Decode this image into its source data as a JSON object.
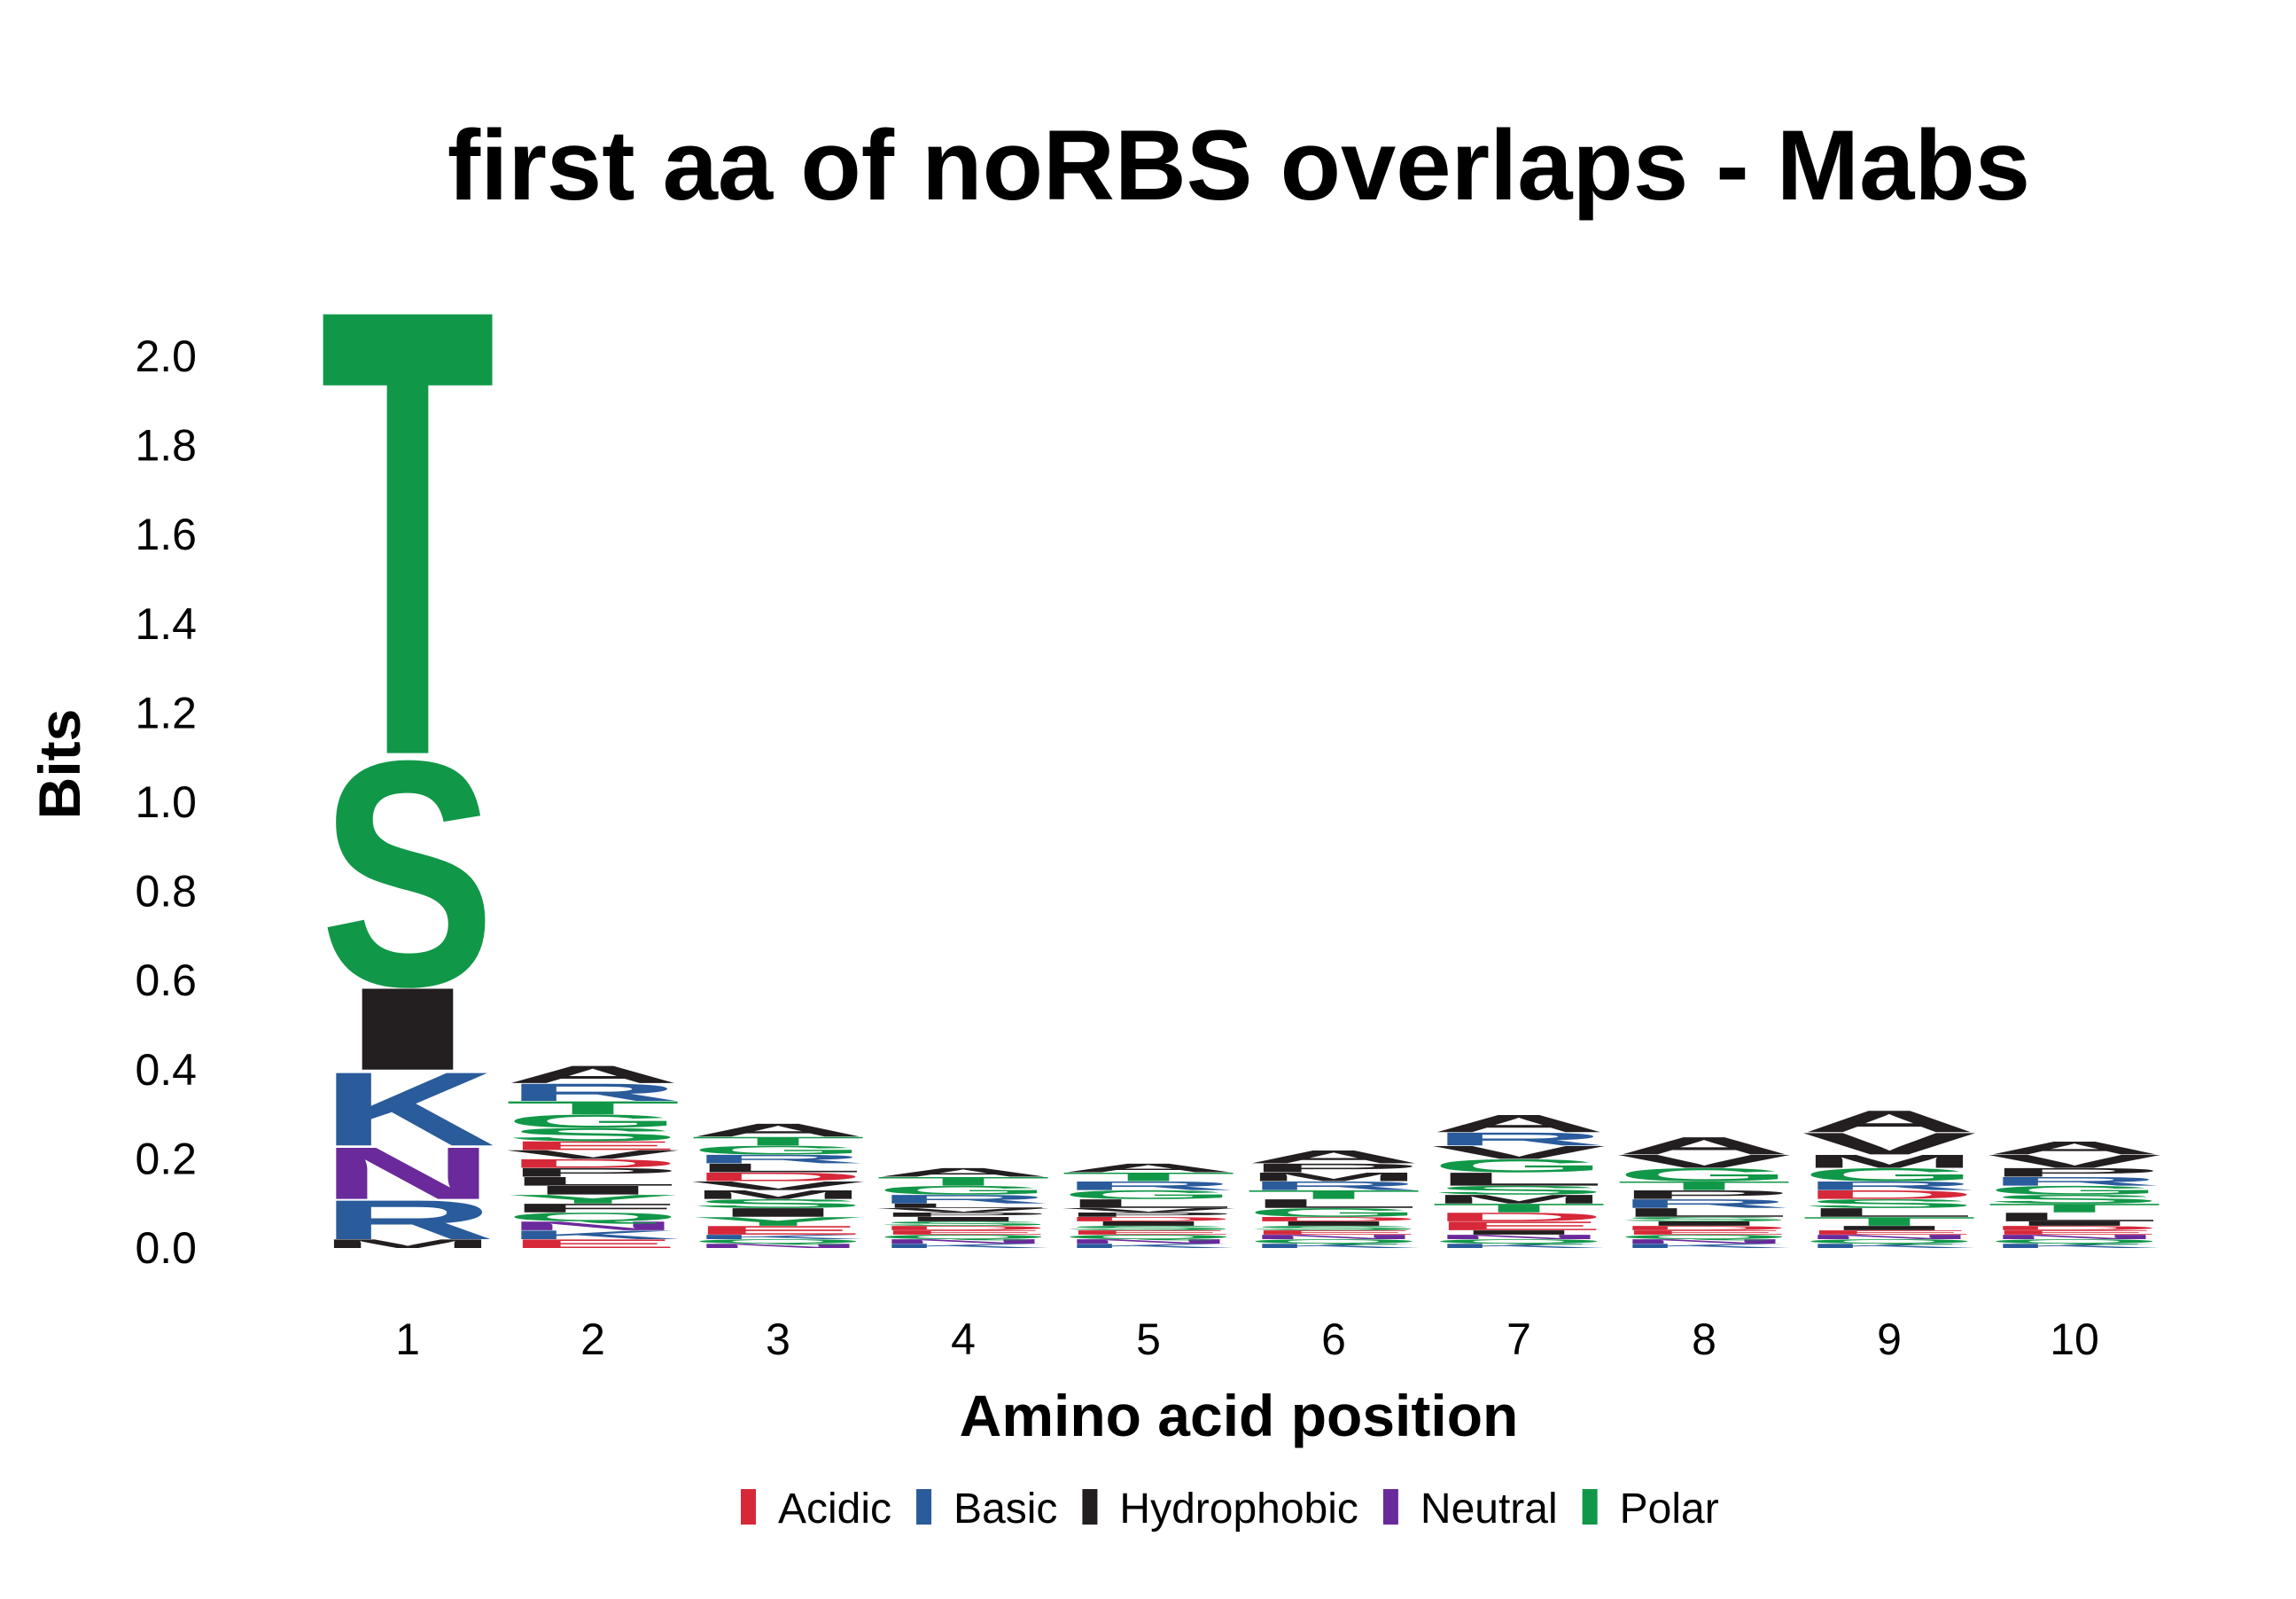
{
  "chart_data": {
    "type": "sequence-logo",
    "title": "first aa of noRBS overlaps - Mabs",
    "xlabel": "Amino acid position",
    "ylabel": "Bits",
    "ylim": [
      0,
      2.2
    ],
    "yticks": [
      "0.0",
      "0.2",
      "0.4",
      "0.6",
      "0.8",
      "1.0",
      "1.2",
      "1.4",
      "1.6",
      "1.8",
      "2.0"
    ],
    "xticks": [
      "1",
      "2",
      "3",
      "4",
      "5",
      "6",
      "7",
      "8",
      "9",
      "10"
    ],
    "legend": {
      "placement": "bottom",
      "items": [
        {
          "label": "Acidic",
          "color": "#d62839"
        },
        {
          "label": "Basic",
          "color": "#2a5b9b"
        },
        {
          "label": "Hydrophobic",
          "color": "#231f20"
        },
        {
          "label": "Neutral",
          "color": "#6a2a9b"
        },
        {
          "label": "Polar",
          "color": "#119748"
        }
      ]
    },
    "positions": [
      {
        "position": "1",
        "stack": [
          {
            "letter": "M",
            "group": "Hydrophobic",
            "bits": 0.02
          },
          {
            "letter": "R",
            "group": "Basic",
            "bits": 0.09
          },
          {
            "letter": "N",
            "group": "Neutral",
            "bits": 0.12
          },
          {
            "letter": "K",
            "group": "Basic",
            "bits": 0.17
          },
          {
            "letter": "I",
            "group": "Hydrophobic",
            "bits": 0.19
          },
          {
            "letter": "S",
            "group": "Polar",
            "bits": 0.52
          },
          {
            "letter": "T",
            "group": "Polar",
            "bits": 1.03
          }
        ]
      },
      {
        "position": "2",
        "stack": [
          {
            "letter": "E",
            "group": "Acidic",
            "bits": 0.02
          },
          {
            "letter": "K",
            "group": "Basic",
            "bits": 0.02
          },
          {
            "letter": "N",
            "group": "Neutral",
            "bits": 0.02
          },
          {
            "letter": "Q",
            "group": "Polar",
            "bits": 0.02
          },
          {
            "letter": "F",
            "group": "Hydrophobic",
            "bits": 0.02
          },
          {
            "letter": "Y",
            "group": "Polar",
            "bits": 0.02
          },
          {
            "letter": "I",
            "group": "Hydrophobic",
            "bits": 0.02
          },
          {
            "letter": "L",
            "group": "Hydrophobic",
            "bits": 0.02
          },
          {
            "letter": "P",
            "group": "Hydrophobic",
            "bits": 0.02
          },
          {
            "letter": "D",
            "group": "Acidic",
            "bits": 0.02
          },
          {
            "letter": "V",
            "group": "Hydrophobic",
            "bits": 0.02
          },
          {
            "letter": "E",
            "group": "Acidic",
            "bits": 0.02
          },
          {
            "letter": "S",
            "group": "Polar",
            "bits": 0.03
          },
          {
            "letter": "G",
            "group": "Polar",
            "bits": 0.03
          },
          {
            "letter": "T",
            "group": "Polar",
            "bits": 0.03
          },
          {
            "letter": "R",
            "group": "Basic",
            "bits": 0.04
          },
          {
            "letter": "A",
            "group": "Hydrophobic",
            "bits": 0.04
          }
        ]
      },
      {
        "position": "3",
        "stack": [
          {
            "letter": "N",
            "group": "Neutral",
            "bits": 0.01
          },
          {
            "letter": "Q",
            "group": "Polar",
            "bits": 0.01
          },
          {
            "letter": "K",
            "group": "Basic",
            "bits": 0.01
          },
          {
            "letter": "E",
            "group": "Acidic",
            "bits": 0.02
          },
          {
            "letter": "Y",
            "group": "Polar",
            "bits": 0.02
          },
          {
            "letter": "I",
            "group": "Hydrophobic",
            "bits": 0.02
          },
          {
            "letter": "S",
            "group": "Polar",
            "bits": 0.02
          },
          {
            "letter": "M",
            "group": "Hydrophobic",
            "bits": 0.02
          },
          {
            "letter": "V",
            "group": "Hydrophobic",
            "bits": 0.02
          },
          {
            "letter": "D",
            "group": "Acidic",
            "bits": 0.02
          },
          {
            "letter": "L",
            "group": "Hydrophobic",
            "bits": 0.02
          },
          {
            "letter": "R",
            "group": "Basic",
            "bits": 0.02
          },
          {
            "letter": "G",
            "group": "Polar",
            "bits": 0.02
          },
          {
            "letter": "T",
            "group": "Polar",
            "bits": 0.02
          },
          {
            "letter": "A",
            "group": "Hydrophobic",
            "bits": 0.03
          }
        ]
      },
      {
        "position": "4",
        "stack": [
          {
            "letter": "K",
            "group": "Basic",
            "bits": 0.01
          },
          {
            "letter": "N",
            "group": "Neutral",
            "bits": 0.01
          },
          {
            "letter": "Q",
            "group": "Polar",
            "bits": 0.01
          },
          {
            "letter": "E",
            "group": "Acidic",
            "bits": 0.01
          },
          {
            "letter": "D",
            "group": "Acidic",
            "bits": 0.01
          },
          {
            "letter": "S",
            "group": "Polar",
            "bits": 0.01
          },
          {
            "letter": "I",
            "group": "Hydrophobic",
            "bits": 0.01
          },
          {
            "letter": "P",
            "group": "Hydrophobic",
            "bits": 0.01
          },
          {
            "letter": "V",
            "group": "Hydrophobic",
            "bits": 0.01
          },
          {
            "letter": "L",
            "group": "Hydrophobic",
            "bits": 0.01
          },
          {
            "letter": "R",
            "group": "Basic",
            "bits": 0.02
          },
          {
            "letter": "G",
            "group": "Polar",
            "bits": 0.02
          },
          {
            "letter": "T",
            "group": "Polar",
            "bits": 0.02
          },
          {
            "letter": "A",
            "group": "Hydrophobic",
            "bits": 0.02
          }
        ]
      },
      {
        "position": "5",
        "stack": [
          {
            "letter": "K",
            "group": "Basic",
            "bits": 0.01
          },
          {
            "letter": "N",
            "group": "Neutral",
            "bits": 0.01
          },
          {
            "letter": "Q",
            "group": "Polar",
            "bits": 0.01
          },
          {
            "letter": "E",
            "group": "Acidic",
            "bits": 0.01
          },
          {
            "letter": "S",
            "group": "Polar",
            "bits": 0.01
          },
          {
            "letter": "I",
            "group": "Hydrophobic",
            "bits": 0.01
          },
          {
            "letter": "D",
            "group": "Acidic",
            "bits": 0.01
          },
          {
            "letter": "P",
            "group": "Hydrophobic",
            "bits": 0.01
          },
          {
            "letter": "V",
            "group": "Hydrophobic",
            "bits": 0.01
          },
          {
            "letter": "L",
            "group": "Hydrophobic",
            "bits": 0.02
          },
          {
            "letter": "G",
            "group": "Polar",
            "bits": 0.02
          },
          {
            "letter": "R",
            "group": "Basic",
            "bits": 0.02
          },
          {
            "letter": "T",
            "group": "Polar",
            "bits": 0.02
          },
          {
            "letter": "A",
            "group": "Hydrophobic",
            "bits": 0.02
          }
        ]
      },
      {
        "position": "6",
        "stack": [
          {
            "letter": "K",
            "group": "Basic",
            "bits": 0.01
          },
          {
            "letter": "Q",
            "group": "Polar",
            "bits": 0.01
          },
          {
            "letter": "N",
            "group": "Neutral",
            "bits": 0.01
          },
          {
            "letter": "E",
            "group": "Acidic",
            "bits": 0.01
          },
          {
            "letter": "S",
            "group": "Polar",
            "bits": 0.01
          },
          {
            "letter": "I",
            "group": "Hydrophobic",
            "bits": 0.01
          },
          {
            "letter": "D",
            "group": "Acidic",
            "bits": 0.01
          },
          {
            "letter": "G",
            "group": "Polar",
            "bits": 0.02
          },
          {
            "letter": "L",
            "group": "Hydrophobic",
            "bits": 0.02
          },
          {
            "letter": "T",
            "group": "Polar",
            "bits": 0.02
          },
          {
            "letter": "R",
            "group": "Basic",
            "bits": 0.02
          },
          {
            "letter": "M",
            "group": "Hydrophobic",
            "bits": 0.02
          },
          {
            "letter": "P",
            "group": "Hydrophobic",
            "bits": 0.02
          },
          {
            "letter": "A",
            "group": "Hydrophobic",
            "bits": 0.03
          }
        ]
      },
      {
        "position": "7",
        "stack": [
          {
            "letter": "K",
            "group": "Basic",
            "bits": 0.01
          },
          {
            "letter": "Q",
            "group": "Polar",
            "bits": 0.01
          },
          {
            "letter": "N",
            "group": "Neutral",
            "bits": 0.01
          },
          {
            "letter": "I",
            "group": "Hydrophobic",
            "bits": 0.01
          },
          {
            "letter": "E",
            "group": "Acidic",
            "bits": 0.02
          },
          {
            "letter": "D",
            "group": "Acidic",
            "bits": 0.02
          },
          {
            "letter": "T",
            "group": "Polar",
            "bits": 0.02
          },
          {
            "letter": "M",
            "group": "Hydrophobic",
            "bits": 0.02
          },
          {
            "letter": "S",
            "group": "Polar",
            "bits": 0.02
          },
          {
            "letter": "L",
            "group": "Hydrophobic",
            "bits": 0.03
          },
          {
            "letter": "G",
            "group": "Polar",
            "bits": 0.03
          },
          {
            "letter": "V",
            "group": "Hydrophobic",
            "bits": 0.03
          },
          {
            "letter": "R",
            "group": "Basic",
            "bits": 0.03
          },
          {
            "letter": "A",
            "group": "Hydrophobic",
            "bits": 0.04
          }
        ]
      },
      {
        "position": "8",
        "stack": [
          {
            "letter": "K",
            "group": "Basic",
            "bits": 0.01
          },
          {
            "letter": "N",
            "group": "Neutral",
            "bits": 0.01
          },
          {
            "letter": "Q",
            "group": "Polar",
            "bits": 0.01
          },
          {
            "letter": "E",
            "group": "Acidic",
            "bits": 0.01
          },
          {
            "letter": "D",
            "group": "Acidic",
            "bits": 0.01
          },
          {
            "letter": "I",
            "group": "Hydrophobic",
            "bits": 0.01
          },
          {
            "letter": "S",
            "group": "Polar",
            "bits": 0.01
          },
          {
            "letter": "L",
            "group": "Hydrophobic",
            "bits": 0.02
          },
          {
            "letter": "R",
            "group": "Basic",
            "bits": 0.02
          },
          {
            "letter": "P",
            "group": "Hydrophobic",
            "bits": 0.02
          },
          {
            "letter": "T",
            "group": "Polar",
            "bits": 0.02
          },
          {
            "letter": "G",
            "group": "Polar",
            "bits": 0.03
          },
          {
            "letter": "V",
            "group": "Hydrophobic",
            "bits": 0.03
          },
          {
            "letter": "A",
            "group": "Hydrophobic",
            "bits": 0.04
          }
        ]
      },
      {
        "position": "9",
        "stack": [
          {
            "letter": "K",
            "group": "Basic",
            "bits": 0.01
          },
          {
            "letter": "Q",
            "group": "Polar",
            "bits": 0.01
          },
          {
            "letter": "N",
            "group": "Neutral",
            "bits": 0.01
          },
          {
            "letter": "E",
            "group": "Acidic",
            "bits": 0.01
          },
          {
            "letter": "I",
            "group": "Hydrophobic",
            "bits": 0.01
          },
          {
            "letter": "T",
            "group": "Polar",
            "bits": 0.02
          },
          {
            "letter": "L",
            "group": "Hydrophobic",
            "bits": 0.02
          },
          {
            "letter": "S",
            "group": "Polar",
            "bits": 0.02
          },
          {
            "letter": "D",
            "group": "Acidic",
            "bits": 0.02
          },
          {
            "letter": "R",
            "group": "Basic",
            "bits": 0.02
          },
          {
            "letter": "G",
            "group": "Polar",
            "bits": 0.03
          },
          {
            "letter": "M",
            "group": "Hydrophobic",
            "bits": 0.03
          },
          {
            "letter": "V",
            "group": "Hydrophobic",
            "bits": 0.05
          },
          {
            "letter": "A",
            "group": "Hydrophobic",
            "bits": 0.05
          }
        ]
      },
      {
        "position": "10",
        "stack": [
          {
            "letter": "K",
            "group": "Basic",
            "bits": 0.01
          },
          {
            "letter": "Q",
            "group": "Polar",
            "bits": 0.01
          },
          {
            "letter": "N",
            "group": "Neutral",
            "bits": 0.01
          },
          {
            "letter": "E",
            "group": "Acidic",
            "bits": 0.01
          },
          {
            "letter": "D",
            "group": "Acidic",
            "bits": 0.01
          },
          {
            "letter": "I",
            "group": "Hydrophobic",
            "bits": 0.01
          },
          {
            "letter": "L",
            "group": "Hydrophobic",
            "bits": 0.02
          },
          {
            "letter": "T",
            "group": "Polar",
            "bits": 0.02
          },
          {
            "letter": "S",
            "group": "Polar",
            "bits": 0.02
          },
          {
            "letter": "G",
            "group": "Polar",
            "bits": 0.02
          },
          {
            "letter": "R",
            "group": "Basic",
            "bits": 0.02
          },
          {
            "letter": "P",
            "group": "Hydrophobic",
            "bits": 0.02
          },
          {
            "letter": "V",
            "group": "Hydrophobic",
            "bits": 0.03
          },
          {
            "letter": "A",
            "group": "Hydrophobic",
            "bits": 0.03
          }
        ]
      }
    ]
  }
}
